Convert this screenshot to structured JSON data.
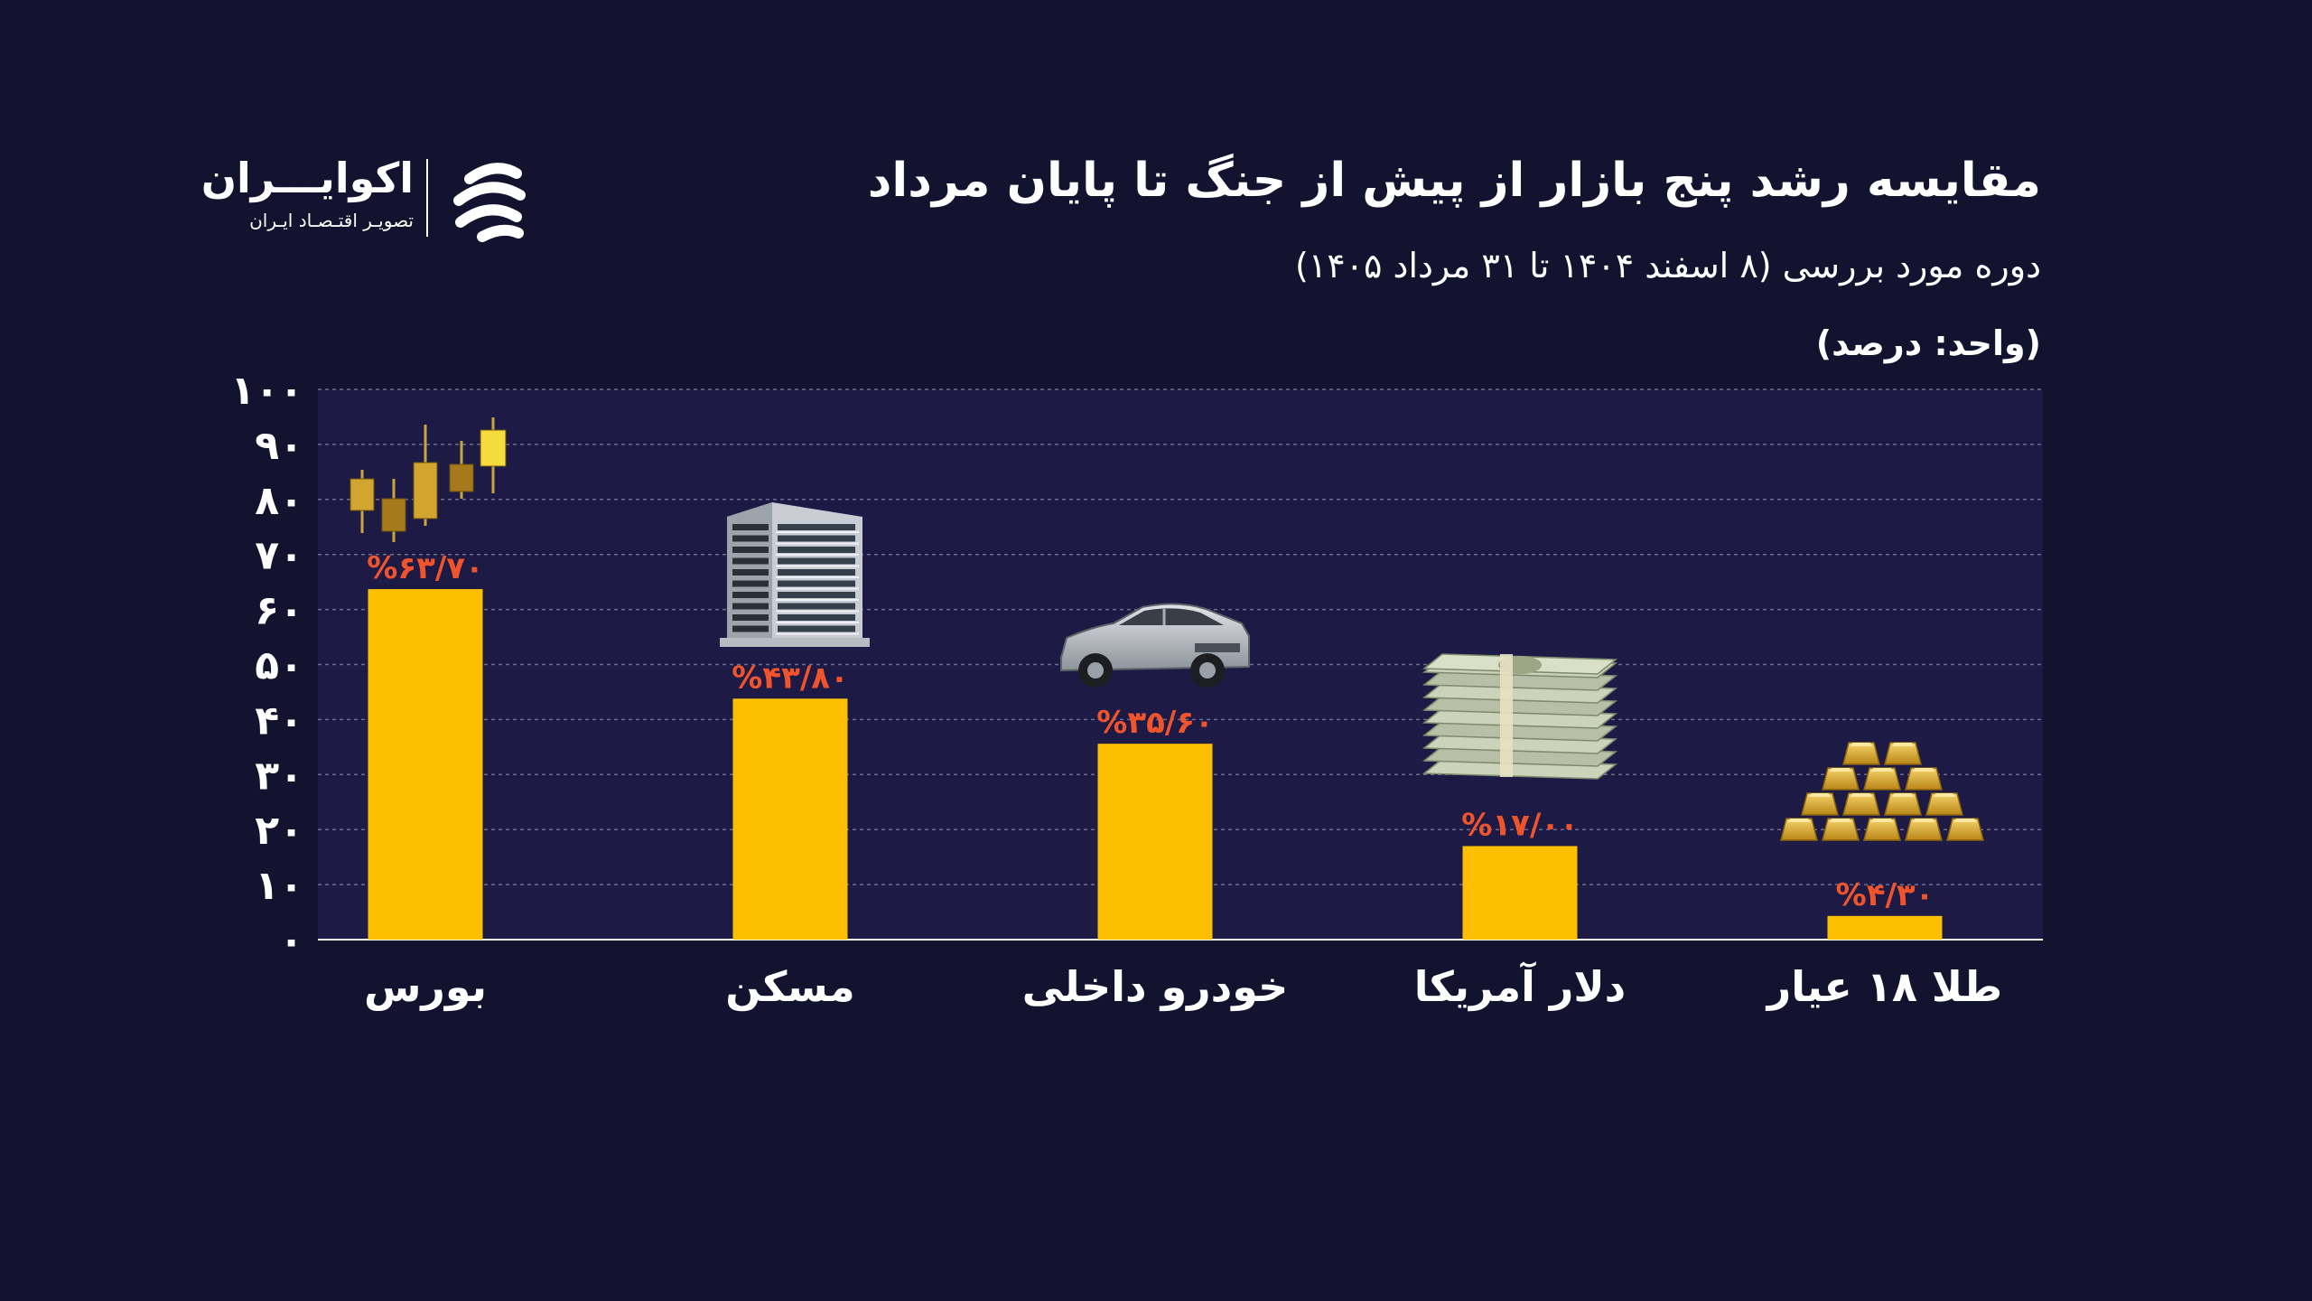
{
  "header": {
    "title": "مقایسه رشد پنج بازار از پیش از جنگ تا پایان مرداد",
    "subtitle": "دوره مورد بررسی (۸ اسفند ۱۴۰۴ تا ۳۱ مرداد ۱۴۰۵)",
    "unit": "(واحد: درصد)"
  },
  "brand": {
    "name": "اکوایـــران",
    "tagline": "تصویـر اقتـصـاد ایـران",
    "icon": "ecoiran-logo-icon"
  },
  "colors": {
    "background": "#13122f",
    "plot_background": "#1d1b45",
    "bar": "#fcc001",
    "value_label": "#f0542d",
    "text": "#ffffff",
    "grid": "#6d6c8a"
  },
  "chart_data": {
    "type": "bar",
    "title": "مقایسه رشد پنج بازار از پیش از جنگ تا پایان مرداد",
    "subtitle": "دوره مورد بررسی (۸ اسفند ۱۴۰۴ تا ۳۱ مرداد ۱۴۰۵)",
    "xlabel": "",
    "ylabel": "",
    "ylim": [
      0,
      100
    ],
    "yticks": [
      0,
      10,
      20,
      30,
      40,
      50,
      60,
      70,
      80,
      90,
      100
    ],
    "ytick_labels": [
      "۰",
      "۱۰",
      "۲۰",
      "۳۰",
      "۴۰",
      "۵۰",
      "۶۰",
      "۷۰",
      "۸۰",
      "۹۰",
      "۱۰۰"
    ],
    "grid": true,
    "categories": [
      "بورس",
      "مسکن",
      "خودرو داخلی",
      "دلار آمریکا",
      "طلا ۱۸ عیار"
    ],
    "values": [
      63.7,
      43.8,
      35.6,
      17.0,
      4.3
    ],
    "value_labels": [
      "%۶۳/۷۰",
      "%۴۳/۸۰",
      "%۳۵/۶۰",
      "%۱۷/۰۰",
      "%۴/۳۰"
    ],
    "icons": [
      "candlestick-chart-icon",
      "apartment-building-icon",
      "sedan-car-icon",
      "dollar-banknotes-icon",
      "gold-bars-icon"
    ]
  }
}
